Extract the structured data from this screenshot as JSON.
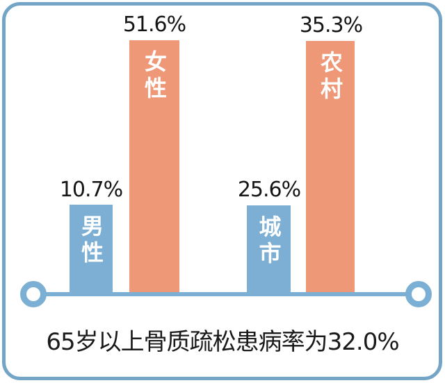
{
  "chart_data": {
    "type": "bar",
    "caption": "65岁以上骨质疏松患病率为32.0%",
    "overall_rate": 32.0,
    "unit": "%",
    "bars": [
      {
        "label": "男性",
        "value": 10.7,
        "value_label": "10.7%",
        "color": "#7cafd3",
        "group": "gender"
      },
      {
        "label": "女性",
        "value": 51.6,
        "value_label": "51.6%",
        "color": "#ef9878",
        "group": "gender"
      },
      {
        "label": "城市",
        "value": 25.6,
        "value_label": "25.6%",
        "color": "#7cafd3",
        "group": "region"
      },
      {
        "label": "农村",
        "value": 35.3,
        "value_label": "35.3%",
        "color": "#ef9878",
        "group": "region"
      }
    ],
    "layout_hints": {
      "legend": "none",
      "grid": "off",
      "value_labels_position": "above-bars",
      "category_labels_position": "inside-bars-vertical",
      "axis_style": "single-baseline-with-ring-endpoints",
      "bars_not_to_scale": true
    },
    "colors": {
      "male_urban_bar": "#7cafd3",
      "female_rural_bar": "#ef9878",
      "axis": "#7bafd4",
      "frame_border": "#74a4c6",
      "text": "#1a1a1a",
      "bar_label_text": "#ffffff",
      "background": "#ffffff"
    }
  }
}
